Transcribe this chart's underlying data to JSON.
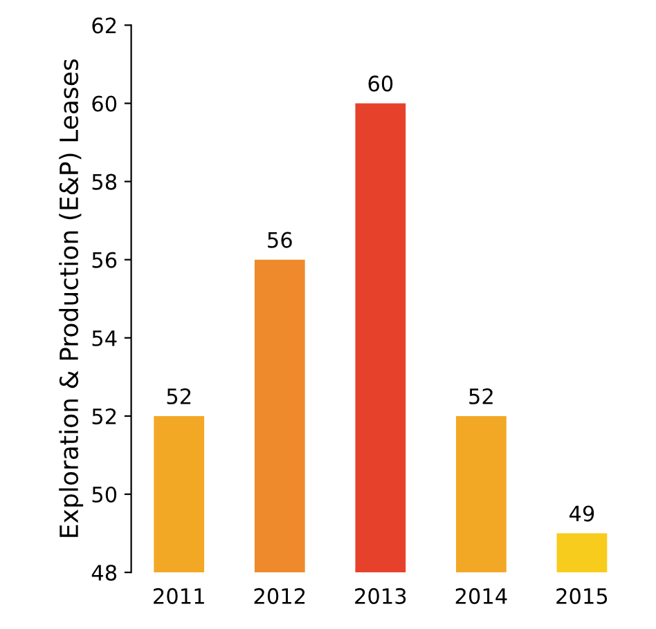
{
  "chart_data": {
    "type": "bar",
    "ylabel": "Exploration & Production (E&P) Leases",
    "categories": [
      "2011",
      "2012",
      "2013",
      "2014",
      "2015"
    ],
    "values": [
      52,
      56,
      60,
      52,
      49
    ],
    "colors": [
      "#f3a825",
      "#ee8a2b",
      "#e6422b",
      "#f3a825",
      "#f8cc1c"
    ],
    "ylim": [
      48,
      62
    ],
    "yticks": [
      48,
      50,
      52,
      54,
      56,
      58,
      60,
      62
    ],
    "data_labels": true,
    "grid": false,
    "legend": false
  }
}
